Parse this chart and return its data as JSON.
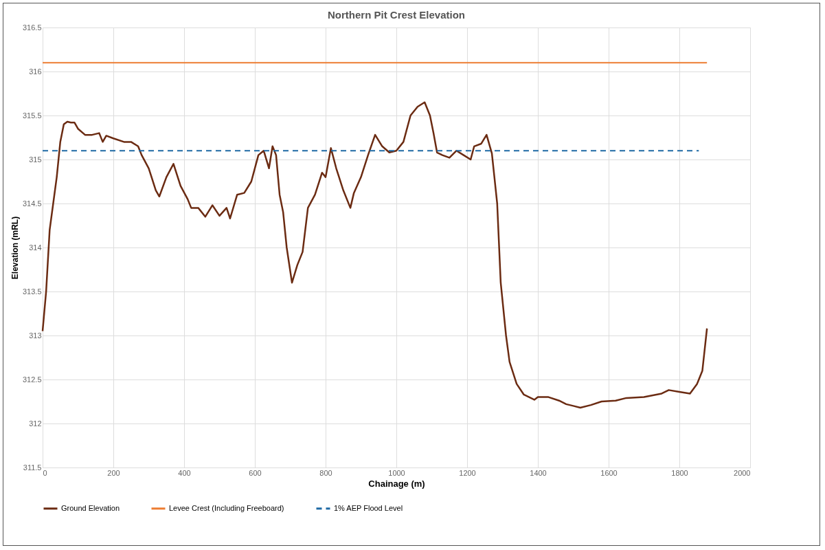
{
  "chart_data": {
    "type": "line",
    "title": "Northern Pit Crest Elevation",
    "xlabel": "Chainage (m)",
    "ylabel": "Elevation (mRL)",
    "xlim": [
      0,
      2000
    ],
    "xticks": [
      0,
      200,
      400,
      600,
      800,
      1000,
      1200,
      1400,
      1600,
      1800,
      2000
    ],
    "ylim": [
      311.5,
      316.5
    ],
    "yticks": [
      311.5,
      312,
      312.5,
      313,
      313.5,
      314,
      314.5,
      315,
      315.5,
      316,
      316.5
    ],
    "grid": true,
    "legend": "bottom",
    "line_style": "solid",
    "series": [
      {
        "name": "Ground Elevation",
        "color": "#6b2b12",
        "x": [
          0,
          10,
          20,
          30,
          40,
          50,
          60,
          70,
          80,
          90,
          100,
          120,
          140,
          160,
          170,
          180,
          200,
          230,
          250,
          270,
          280,
          300,
          320,
          330,
          350,
          370,
          390,
          410,
          420,
          440,
          460,
          480,
          500,
          520,
          530,
          550,
          570,
          590,
          610,
          625,
          640,
          650,
          660,
          670,
          680,
          690,
          705,
          720,
          735,
          750,
          770,
          790,
          800,
          815,
          830,
          850,
          870,
          880,
          900,
          920,
          940,
          960,
          980,
          1000,
          1020,
          1040,
          1060,
          1080,
          1095,
          1105,
          1115,
          1130,
          1150,
          1170,
          1190,
          1210,
          1220,
          1240,
          1255,
          1270,
          1285,
          1295,
          1310,
          1320,
          1340,
          1360,
          1390,
          1400,
          1430,
          1460,
          1480,
          1500,
          1520,
          1550,
          1580,
          1620,
          1650,
          1700,
          1750,
          1770,
          1800,
          1830,
          1850,
          1865,
          1878
        ],
        "values": [
          313.05,
          313.5,
          314.2,
          314.5,
          314.8,
          315.2,
          315.4,
          315.43,
          315.42,
          315.42,
          315.35,
          315.28,
          315.28,
          315.3,
          315.2,
          315.27,
          315.24,
          315.2,
          315.2,
          315.15,
          315.05,
          314.9,
          314.65,
          314.58,
          314.8,
          314.95,
          314.7,
          314.55,
          314.45,
          314.45,
          314.35,
          314.48,
          314.36,
          314.45,
          314.33,
          314.6,
          314.62,
          314.75,
          315.05,
          315.1,
          314.9,
          315.15,
          315.05,
          314.6,
          314.4,
          314.0,
          313.6,
          313.8,
          313.95,
          314.45,
          314.6,
          314.85,
          314.8,
          315.13,
          314.9,
          314.65,
          314.45,
          314.62,
          314.8,
          315.05,
          315.28,
          315.15,
          315.08,
          315.1,
          315.2,
          315.5,
          315.6,
          315.65,
          315.5,
          315.3,
          315.08,
          315.05,
          315.02,
          315.1,
          315.05,
          315.0,
          315.15,
          315.18,
          315.28,
          315.07,
          314.5,
          313.6,
          313.0,
          312.7,
          312.45,
          312.33,
          312.27,
          312.3,
          312.3,
          312.26,
          312.22,
          312.2,
          312.18,
          312.21,
          312.25,
          312.26,
          312.29,
          312.3,
          312.34,
          312.38,
          312.36,
          312.34,
          312.45,
          312.6,
          313.08
        ]
      },
      {
        "name": "Levee Crest (Including Freeboard)",
        "color": "#ed7d31",
        "x": [
          0,
          1878
        ],
        "values": [
          316.1,
          316.1
        ]
      },
      {
        "name": "1% AEP Flood Level",
        "color": "#1f6aa5",
        "line_style": "dashed",
        "x": [
          0,
          1855
        ],
        "values": [
          315.1,
          315.1
        ]
      }
    ]
  }
}
